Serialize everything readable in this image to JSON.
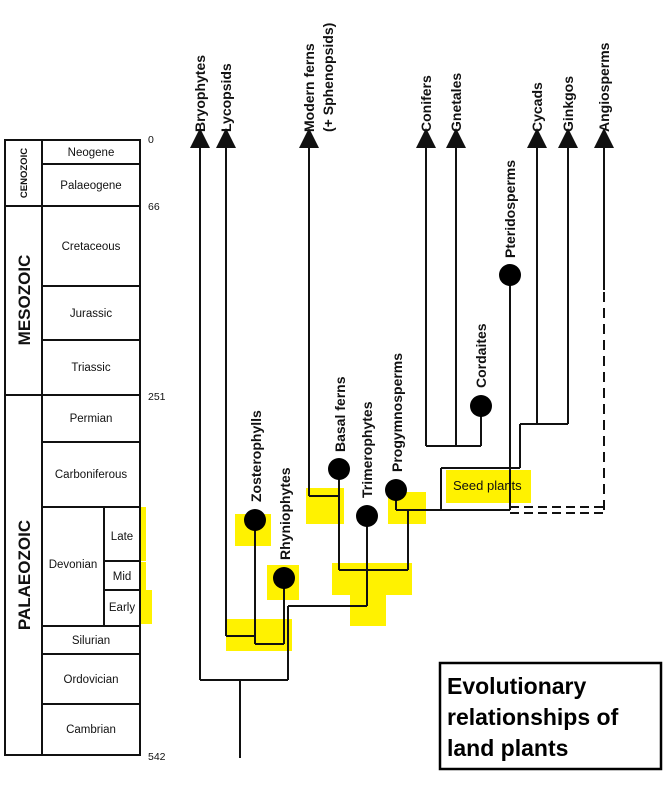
{
  "timescale": {
    "eras": [
      {
        "name": "CENOZOIC"
      },
      {
        "name": "MESOZOIC"
      },
      {
        "name": "PALAEOZOIC"
      }
    ],
    "periods": [
      {
        "name": "Neogene"
      },
      {
        "name": "Palaeogene"
      },
      {
        "name": "Cretaceous"
      },
      {
        "name": "Jurassic"
      },
      {
        "name": "Triassic"
      },
      {
        "name": "Permian"
      },
      {
        "name": "Carboniferous"
      },
      {
        "name": "Devonian"
      },
      {
        "name": "Silurian"
      },
      {
        "name": "Ordovician"
      },
      {
        "name": "Cambrian"
      }
    ],
    "epochs": [
      {
        "name": "Late"
      },
      {
        "name": "Mid"
      },
      {
        "name": "Early"
      }
    ],
    "ages_ma": [
      "0",
      "66",
      "251",
      "542"
    ]
  },
  "taxa": {
    "bryophytes": "Bryophytes",
    "lycopsids": "Lycopsids",
    "modern_ferns": "Modern ferns",
    "modern_ferns_note": "(+ Sphenopsids)",
    "conifers": "Conifers",
    "gnetales": "Gnetales",
    "cycads": "Cycads",
    "ginkgos": "Ginkgos",
    "angiosperms": "Angiosperms",
    "pteridosperms": "Pteridosperms",
    "cordaites": "Cordaites",
    "progymnosperms": "Progymnosperms",
    "trimerophytes": "Trimerophytes",
    "basal_ferns": "Basal ferns",
    "zosterophylls": "Zosterophylls",
    "rhyniophytes": "Rhyniophytes"
  },
  "labels": {
    "seed_plants": "Seed plants"
  },
  "title": {
    "line1": "Evolutionary",
    "line2": "relationships of",
    "line3": "land plants"
  }
}
